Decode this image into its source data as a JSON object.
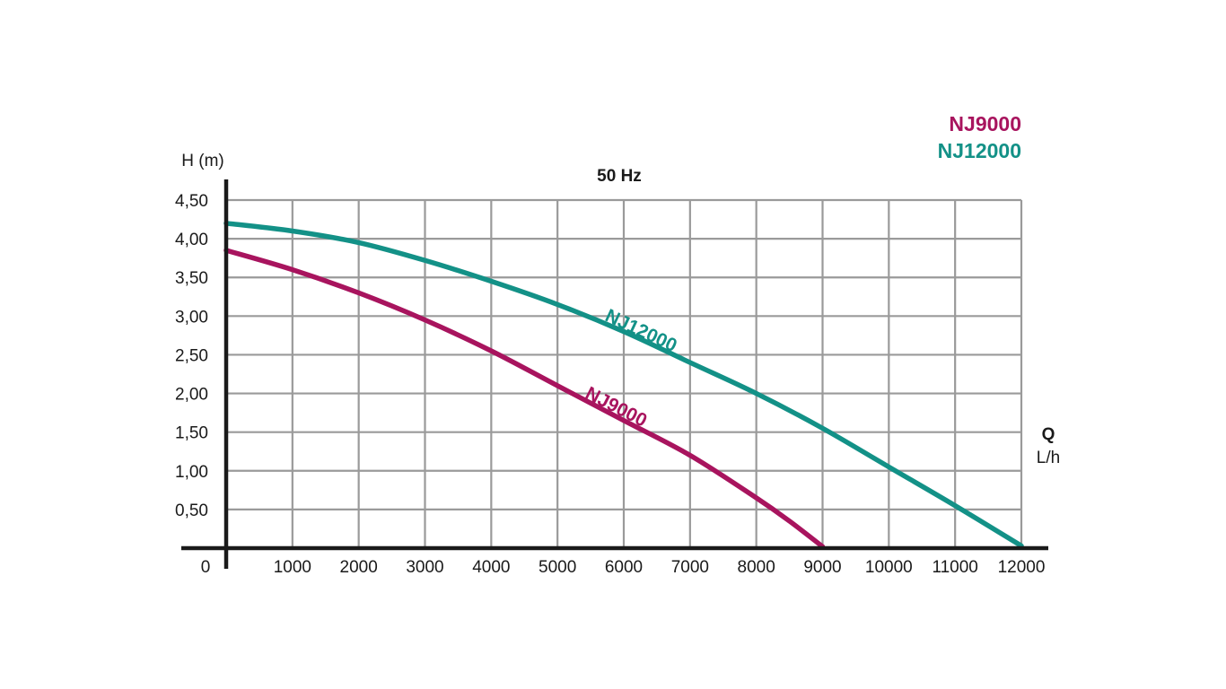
{
  "chart_data": {
    "type": "line",
    "title": "50 Hz",
    "ylabel": "H (m)",
    "xlabel": "Q",
    "xunit": "L/h",
    "origin_label": "0",
    "xlim": [
      0,
      12000
    ],
    "ylim": [
      0,
      4.5
    ],
    "grid": true,
    "legend_position": "top-right",
    "x_ticks": [
      1000,
      2000,
      3000,
      4000,
      5000,
      6000,
      7000,
      8000,
      9000,
      10000,
      11000,
      12000
    ],
    "x_tick_labels": [
      "1000",
      "2000",
      "3000",
      "4000",
      "5000",
      "6000",
      "7000",
      "8000",
      "9000",
      "10000",
      "11000",
      "12000"
    ],
    "y_ticks": [
      0.5,
      1.0,
      1.5,
      2.0,
      2.5,
      3.0,
      3.5,
      4.0,
      4.5
    ],
    "y_tick_labels": [
      "0,50",
      "1,00",
      "1,50",
      "2,00",
      "2,50",
      "3,00",
      "3,50",
      "4,00",
      "4,50"
    ],
    "series": [
      {
        "name": "NJ9000",
        "color": "#a8145e",
        "curve_label": "NJ9000",
        "x": [
          0,
          1000,
          2000,
          3000,
          4000,
          5000,
          6000,
          7000,
          8000,
          8500,
          9000
        ],
        "y": [
          3.85,
          3.6,
          3.3,
          2.95,
          2.55,
          2.1,
          1.65,
          1.2,
          0.65,
          0.35,
          0.02
        ]
      },
      {
        "name": "NJ12000",
        "color": "#139187",
        "curve_label": "NJ12000",
        "x": [
          0,
          1000,
          2000,
          3000,
          4000,
          5000,
          6000,
          7000,
          8000,
          9000,
          10000,
          11000,
          12000
        ],
        "y": [
          4.2,
          4.1,
          3.95,
          3.72,
          3.45,
          3.15,
          2.8,
          2.4,
          2.0,
          1.55,
          1.05,
          0.55,
          0.03
        ]
      }
    ]
  }
}
